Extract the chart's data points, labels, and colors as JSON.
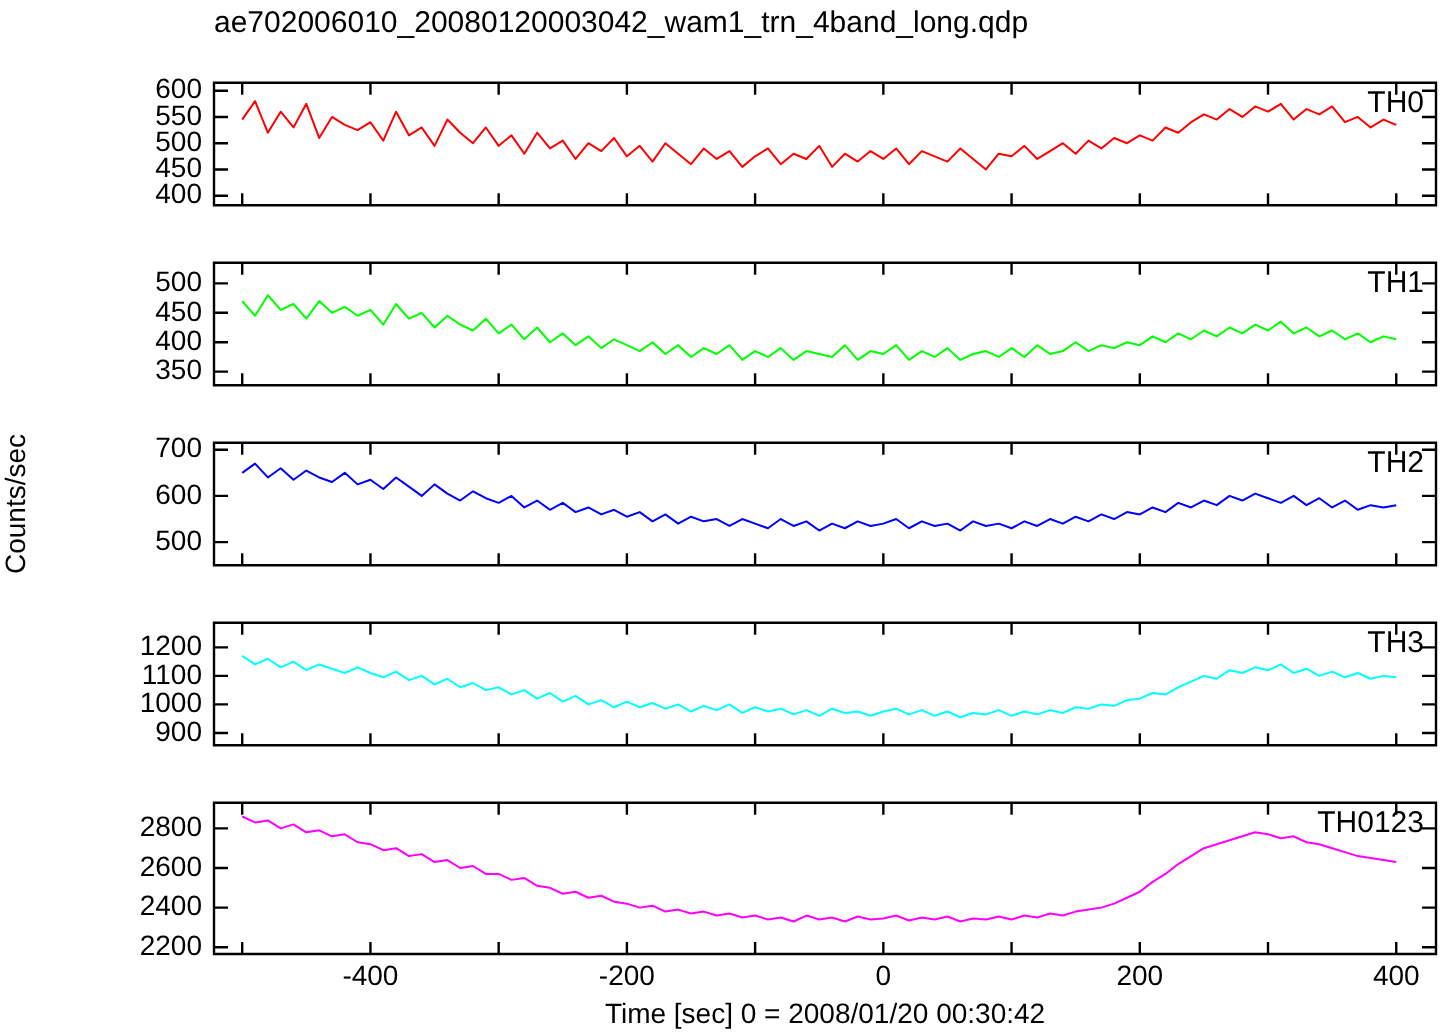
{
  "chart_data": [
    {
      "type": "line",
      "title": "ae702006010_20080120003042_wam1_trn_4band_long.qdp",
      "tick_labels": "y",
      "x": [
        -500,
        -490,
        -480,
        -470,
        -460,
        -450,
        -440,
        -430,
        -420,
        -410,
        -400,
        -390,
        -380,
        -370,
        -360,
        -350,
        -340,
        -330,
        -320,
        -310,
        -300,
        -290,
        -280,
        -270,
        -260,
        -250,
        -240,
        -230,
        -220,
        -210,
        -200,
        -190,
        -180,
        -170,
        -160,
        -150,
        -140,
        -130,
        -120,
        -110,
        -100,
        -90,
        -80,
        -70,
        -60,
        -50,
        -40,
        -30,
        -20,
        -10,
        0,
        10,
        20,
        30,
        40,
        50,
        60,
        70,
        80,
        90,
        100,
        110,
        120,
        130,
        140,
        150,
        160,
        170,
        180,
        190,
        200,
        210,
        220,
        230,
        240,
        250,
        260,
        270,
        280,
        290,
        300,
        310,
        320,
        330,
        340,
        350,
        360,
        370,
        380,
        390,
        400
      ],
      "xlim": [
        -522,
        431
      ],
      "xticks": [
        {
          "value": -500,
          "label": null
        },
        -400,
        {
          "value": -300,
          "label": null
        },
        -200,
        {
          "value": -100,
          "label": null
        },
        0,
        {
          "value": 100,
          "label": null
        },
        200,
        {
          "value": 300,
          "label": null
        },
        400
      ],
      "ylim": [
        382,
        615
      ],
      "yticks": [
        400,
        450,
        500,
        550,
        600
      ],
      "series": [
        {
          "name": "TH0",
          "color": "#ff0000",
          "values": [
            545,
            580,
            520,
            560,
            530,
            575,
            510,
            550,
            535,
            525,
            540,
            505,
            560,
            515,
            530,
            495,
            545,
            520,
            500,
            530,
            495,
            515,
            480,
            520,
            490,
            505,
            470,
            500,
            485,
            510,
            475,
            495,
            465,
            500,
            480,
            460,
            490,
            470,
            485,
            455,
            475,
            490,
            460,
            480,
            470,
            495,
            455,
            480,
            465,
            485,
            470,
            490,
            460,
            485,
            475,
            465,
            490,
            470,
            450,
            480,
            475,
            495,
            470,
            485,
            500,
            480,
            505,
            490,
            510,
            500,
            515,
            505,
            530,
            520,
            540,
            555,
            545,
            565,
            550,
            570,
            560,
            575,
            545,
            565,
            555,
            570,
            540,
            550,
            530,
            545,
            535
          ]
        }
      ]
    },
    {
      "type": "line",
      "tick_labels": "y",
      "x": [
        -500,
        -490,
        -480,
        -470,
        -460,
        -450,
        -440,
        -430,
        -420,
        -410,
        -400,
        -390,
        -380,
        -370,
        -360,
        -350,
        -340,
        -330,
        -320,
        -310,
        -300,
        -290,
        -280,
        -270,
        -260,
        -250,
        -240,
        -230,
        -220,
        -210,
        -200,
        -190,
        -180,
        -170,
        -160,
        -150,
        -140,
        -130,
        -120,
        -110,
        -100,
        -90,
        -80,
        -70,
        -60,
        -50,
        -40,
        -30,
        -20,
        -10,
        0,
        10,
        20,
        30,
        40,
        50,
        60,
        70,
        80,
        90,
        100,
        110,
        120,
        130,
        140,
        150,
        160,
        170,
        180,
        190,
        200,
        210,
        220,
        230,
        240,
        250,
        260,
        270,
        280,
        290,
        300,
        310,
        320,
        330,
        340,
        350,
        360,
        370,
        380,
        390,
        400
      ],
      "xlim": [
        -522,
        431
      ],
      "xticks": [
        {
          "value": -500,
          "label": null
        },
        -400,
        {
          "value": -300,
          "label": null
        },
        -200,
        {
          "value": -100,
          "label": null
        },
        0,
        {
          "value": 100,
          "label": null
        },
        200,
        {
          "value": 300,
          "label": null
        },
        400
      ],
      "ylim": [
        327,
        535
      ],
      "yticks": [
        350,
        400,
        450,
        500
      ],
      "series": [
        {
          "name": "TH1",
          "color": "#00ff00",
          "values": [
            470,
            445,
            480,
            455,
            465,
            440,
            470,
            450,
            460,
            445,
            455,
            430,
            465,
            440,
            450,
            425,
            445,
            430,
            420,
            440,
            415,
            430,
            405,
            425,
            400,
            415,
            395,
            410,
            390,
            405,
            395,
            385,
            400,
            380,
            395,
            375,
            390,
            380,
            395,
            370,
            385,
            375,
            390,
            370,
            385,
            380,
            375,
            395,
            370,
            385,
            380,
            395,
            370,
            385,
            375,
            390,
            370,
            380,
            385,
            375,
            390,
            375,
            395,
            380,
            385,
            400,
            385,
            395,
            390,
            400,
            395,
            410,
            400,
            415,
            405,
            420,
            410,
            425,
            415,
            430,
            420,
            435,
            415,
            425,
            410,
            420,
            405,
            415,
            400,
            410,
            405
          ]
        }
      ]
    },
    {
      "type": "line",
      "tick_labels": "y",
      "ylabel": "Counts/sec",
      "x": [
        -500,
        -490,
        -480,
        -470,
        -460,
        -450,
        -440,
        -430,
        -420,
        -410,
        -400,
        -390,
        -380,
        -370,
        -360,
        -350,
        -340,
        -330,
        -320,
        -310,
        -300,
        -290,
        -280,
        -270,
        -260,
        -250,
        -240,
        -230,
        -220,
        -210,
        -200,
        -190,
        -180,
        -170,
        -160,
        -150,
        -140,
        -130,
        -120,
        -110,
        -100,
        -90,
        -80,
        -70,
        -60,
        -50,
        -40,
        -30,
        -20,
        -10,
        0,
        10,
        20,
        30,
        40,
        50,
        60,
        70,
        80,
        90,
        100,
        110,
        120,
        130,
        140,
        150,
        160,
        170,
        180,
        190,
        200,
        210,
        220,
        230,
        240,
        250,
        260,
        270,
        280,
        290,
        300,
        310,
        320,
        330,
        340,
        350,
        360,
        370,
        380,
        390,
        400
      ],
      "xlim": [
        -522,
        431
      ],
      "xticks": [
        {
          "value": -500,
          "label": null
        },
        -400,
        {
          "value": -300,
          "label": null
        },
        -200,
        {
          "value": -100,
          "label": null
        },
        0,
        {
          "value": 100,
          "label": null
        },
        200,
        {
          "value": 300,
          "label": null
        },
        400
      ],
      "ylim": [
        450,
        715
      ],
      "yticks": [
        500,
        600,
        700
      ],
      "series": [
        {
          "name": "TH2",
          "color": "#0000ff",
          "values": [
            650,
            670,
            640,
            660,
            635,
            655,
            640,
            630,
            650,
            625,
            635,
            615,
            640,
            620,
            600,
            625,
            605,
            590,
            610,
            595,
            585,
            600,
            575,
            590,
            570,
            585,
            565,
            575,
            560,
            570,
            555,
            565,
            545,
            560,
            540,
            555,
            545,
            550,
            535,
            550,
            540,
            530,
            550,
            535,
            545,
            525,
            540,
            530,
            545,
            535,
            540,
            550,
            530,
            545,
            535,
            540,
            525,
            545,
            535,
            540,
            530,
            545,
            535,
            550,
            540,
            555,
            545,
            560,
            550,
            565,
            560,
            575,
            565,
            585,
            575,
            590,
            580,
            600,
            590,
            605,
            595,
            585,
            600,
            580,
            595,
            575,
            590,
            570,
            580,
            575,
            580
          ]
        }
      ]
    },
    {
      "type": "line",
      "tick_labels": "y",
      "x": [
        -500,
        -490,
        -480,
        -470,
        -460,
        -450,
        -440,
        -430,
        -420,
        -410,
        -400,
        -390,
        -380,
        -370,
        -360,
        -350,
        -340,
        -330,
        -320,
        -310,
        -300,
        -290,
        -280,
        -270,
        -260,
        -250,
        -240,
        -230,
        -220,
        -210,
        -200,
        -190,
        -180,
        -170,
        -160,
        -150,
        -140,
        -130,
        -120,
        -110,
        -100,
        -90,
        -80,
        -70,
        -60,
        -50,
        -40,
        -30,
        -20,
        -10,
        0,
        10,
        20,
        30,
        40,
        50,
        60,
        70,
        80,
        90,
        100,
        110,
        120,
        130,
        140,
        150,
        160,
        170,
        180,
        190,
        200,
        210,
        220,
        230,
        240,
        250,
        260,
        270,
        280,
        290,
        300,
        310,
        320,
        330,
        340,
        350,
        360,
        370,
        380,
        390,
        400
      ],
      "xlim": [
        -522,
        431
      ],
      "xticks": [
        {
          "value": -500,
          "label": null
        },
        -400,
        {
          "value": -300,
          "label": null
        },
        -200,
        {
          "value": -100,
          "label": null
        },
        0,
        {
          "value": 100,
          "label": null
        },
        200,
        {
          "value": 300,
          "label": null
        },
        400
      ],
      "ylim": [
        857,
        1286
      ],
      "yticks": [
        900,
        1000,
        1100,
        1200
      ],
      "series": [
        {
          "name": "TH3",
          "color": "#00ffff",
          "values": [
            1170,
            1140,
            1160,
            1130,
            1150,
            1120,
            1140,
            1125,
            1110,
            1130,
            1110,
            1095,
            1115,
            1085,
            1100,
            1070,
            1090,
            1060,
            1075,
            1050,
            1060,
            1035,
            1050,
            1020,
            1040,
            1010,
            1030,
            1000,
            1015,
            990,
            1010,
            990,
            1005,
            985,
            1000,
            975,
            995,
            980,
            1000,
            970,
            990,
            975,
            985,
            965,
            980,
            960,
            985,
            970,
            975,
            960,
            975,
            985,
            965,
            980,
            960,
            975,
            955,
            970,
            965,
            980,
            960,
            975,
            965,
            980,
            970,
            990,
            985,
            1000,
            995,
            1015,
            1020,
            1040,
            1035,
            1060,
            1080,
            1100,
            1090,
            1120,
            1110,
            1130,
            1120,
            1140,
            1110,
            1125,
            1100,
            1115,
            1095,
            1110,
            1090,
            1100,
            1095
          ]
        }
      ]
    },
    {
      "type": "line",
      "xlabel": "Time [sec] 0 = 2008/01/20 00:30:42",
      "x": [
        -500,
        -490,
        -480,
        -470,
        -460,
        -450,
        -440,
        -430,
        -420,
        -410,
        -400,
        -390,
        -380,
        -370,
        -360,
        -350,
        -340,
        -330,
        -320,
        -310,
        -300,
        -290,
        -280,
        -270,
        -260,
        -250,
        -240,
        -230,
        -220,
        -210,
        -200,
        -190,
        -180,
        -170,
        -160,
        -150,
        -140,
        -130,
        -120,
        -110,
        -100,
        -90,
        -80,
        -70,
        -60,
        -50,
        -40,
        -30,
        -20,
        -10,
        0,
        10,
        20,
        30,
        40,
        50,
        60,
        70,
        80,
        90,
        100,
        110,
        120,
        130,
        140,
        150,
        160,
        170,
        180,
        190,
        200,
        210,
        220,
        230,
        240,
        250,
        260,
        270,
        280,
        290,
        300,
        310,
        320,
        330,
        340,
        350,
        360,
        370,
        380,
        390,
        400
      ],
      "xlim": [
        -522,
        431
      ],
      "xticks": [
        {
          "value": -500,
          "label": null
        },
        -400,
        {
          "value": -300,
          "label": null
        },
        -200,
        {
          "value": -100,
          "label": null
        },
        0,
        {
          "value": 100,
          "label": null
        },
        200,
        {
          "value": 300,
          "label": null
        },
        400
      ],
      "ylim": [
        2166,
        2929
      ],
      "yticks": [
        2200,
        2400,
        2600,
        2800
      ],
      "series": [
        {
          "name": "TH0123",
          "color": "#ff00ff",
          "values": [
            2860,
            2830,
            2840,
            2800,
            2820,
            2780,
            2790,
            2760,
            2770,
            2730,
            2720,
            2690,
            2700,
            2660,
            2670,
            2630,
            2640,
            2600,
            2610,
            2570,
            2570,
            2540,
            2550,
            2510,
            2500,
            2470,
            2480,
            2450,
            2460,
            2430,
            2420,
            2400,
            2410,
            2380,
            2390,
            2370,
            2380,
            2360,
            2370,
            2350,
            2360,
            2340,
            2350,
            2330,
            2360,
            2340,
            2350,
            2330,
            2355,
            2340,
            2345,
            2360,
            2335,
            2350,
            2340,
            2355,
            2330,
            2345,
            2340,
            2355,
            2340,
            2360,
            2350,
            2370,
            2360,
            2380,
            2390,
            2400,
            2420,
            2450,
            2480,
            2530,
            2570,
            2620,
            2660,
            2700,
            2720,
            2740,
            2760,
            2780,
            2770,
            2750,
            2760,
            2730,
            2720,
            2700,
            2680,
            2660,
            2650,
            2640,
            2630
          ]
        }
      ]
    }
  ]
}
